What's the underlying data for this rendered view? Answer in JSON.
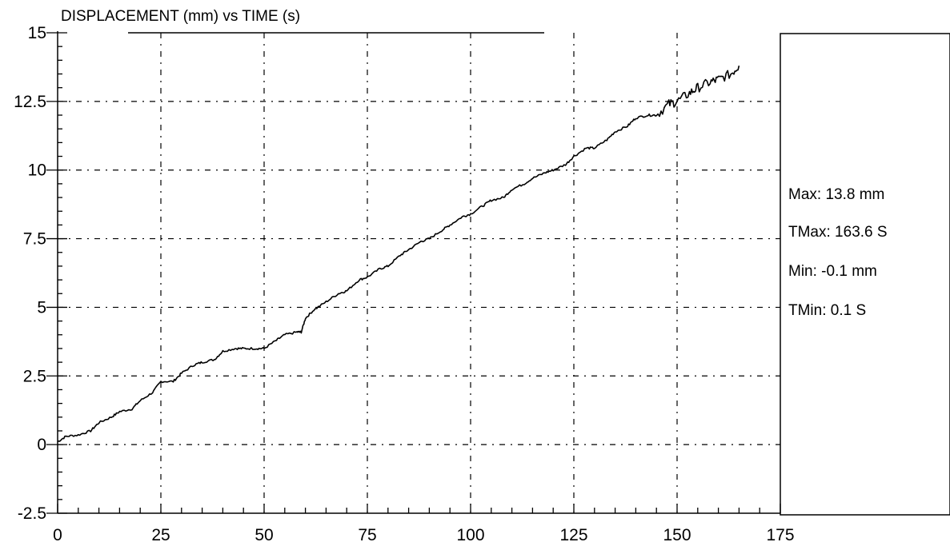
{
  "chart_data": {
    "type": "line",
    "title": "DISPLACEMENT (mm) vs TIME (s)",
    "xlabel": "",
    "ylabel": "",
    "xlim": [
      0,
      175
    ],
    "ylim": [
      -2.5,
      15
    ],
    "x_ticks": [
      0,
      25,
      50,
      75,
      100,
      125,
      150,
      175
    ],
    "y_ticks": [
      -2.5,
      0,
      2.5,
      5,
      7.5,
      10,
      12.5,
      15
    ],
    "x_tick_labels": [
      "0",
      "25",
      "50",
      "75",
      "100",
      "125",
      "150",
      "175"
    ],
    "y_tick_labels": [
      "-2.5",
      "0",
      "2.5",
      "5",
      "7.5",
      "10",
      "12.5",
      "15"
    ],
    "grid": true,
    "legend": "none",
    "series": [
      {
        "color": "#000000",
        "x": [
          0,
          2,
          5,
          8,
          10,
          13,
          15,
          18,
          20,
          23,
          25,
          28,
          30,
          33,
          35,
          38,
          40,
          43,
          45,
          48,
          50,
          53,
          55,
          58,
          59,
          60,
          62,
          65,
          68,
          70,
          73,
          75,
          78,
          80,
          83,
          85,
          88,
          90,
          93,
          95,
          98,
          100,
          103,
          105,
          108,
          110,
          113,
          115,
          118,
          120,
          123,
          125,
          128,
          130,
          133,
          135,
          138,
          140,
          143,
          145,
          148,
          150,
          153,
          155,
          158,
          160,
          163,
          165
        ],
        "y": [
          0.1,
          0.3,
          0.35,
          0.5,
          0.8,
          1.0,
          1.2,
          1.3,
          1.6,
          1.9,
          2.3,
          2.3,
          2.6,
          2.9,
          3.0,
          3.1,
          3.4,
          3.5,
          3.5,
          3.5,
          3.5,
          3.8,
          4.0,
          4.1,
          4.1,
          4.6,
          4.9,
          5.2,
          5.5,
          5.6,
          6.0,
          6.1,
          6.4,
          6.5,
          6.9,
          7.1,
          7.4,
          7.5,
          7.8,
          8.0,
          8.3,
          8.4,
          8.7,
          8.9,
          9.0,
          9.3,
          9.5,
          9.7,
          9.9,
          10.0,
          10.2,
          10.5,
          10.8,
          10.8,
          11.1,
          11.4,
          11.6,
          11.9,
          12.0,
          12.0,
          12.4,
          12.5,
          12.8,
          13.0,
          13.2,
          13.3,
          13.5,
          13.8
        ]
      }
    ]
  },
  "stats": {
    "max": "Max: 13.8 mm",
    "tmax": "TMax: 163.6 S",
    "min": "Min: -0.1 mm",
    "tmin": "TMin: 0.1 S"
  }
}
